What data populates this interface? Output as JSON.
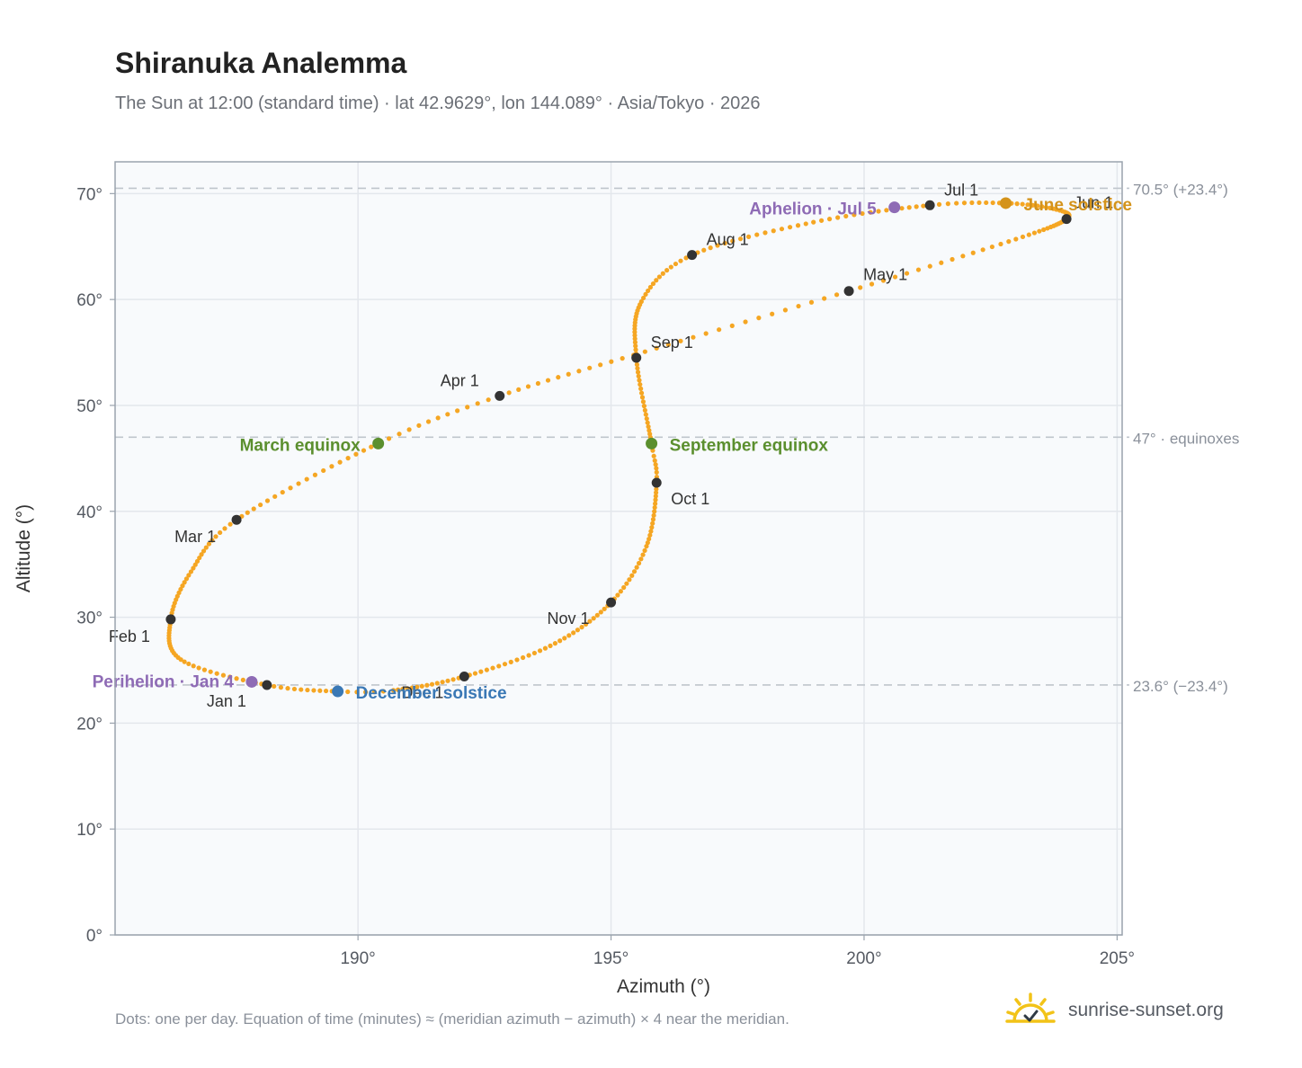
{
  "header": {
    "title": "Shiranuka Analemma",
    "subtitle": "The Sun at 12:00 (standard time) · lat 42.9629°, lon 144.089° · Asia/Tokyo · 2026"
  },
  "footer": {
    "note": "Dots: one per day. Equation of time (minutes) ≈ (meridian azimuth − azimuth) × 4 near the meridian.",
    "brand": "sunrise-sunset.org",
    "brand_icon": "sun-icon"
  },
  "chart_data": {
    "type": "scatter",
    "xlabel": "Azimuth (°)",
    "ylabel": "Altitude (°)",
    "xlim": [
      185.2,
      205.1
    ],
    "ylim": [
      0,
      73
    ],
    "xticks": [
      190,
      195,
      200,
      205
    ],
    "xtick_labels": [
      "190°",
      "195°",
      "200°",
      "205°"
    ],
    "yticks": [
      0,
      10,
      20,
      30,
      40,
      50,
      60,
      70
    ],
    "ytick_labels": [
      "0°",
      "10°",
      "20°",
      "30°",
      "40°",
      "50°",
      "60°",
      "70°"
    ],
    "grid": true,
    "colors": {
      "path": "#f5a623",
      "month": "#333333",
      "equinox": "#5b8f2e",
      "june": "#d4931a",
      "december": "#3a78b5",
      "apsis": "#8e6bb5",
      "refline": "#bfc5cc",
      "plot_bg": "#f8fafc",
      "border": "#9aa3ad"
    },
    "reference_lines": [
      {
        "y": 70.5,
        "label": "70.5° (+23.4°)"
      },
      {
        "y": 47,
        "label": "47° · equinoxes"
      },
      {
        "y": 23.6,
        "label": "23.6° (−23.4°)"
      }
    ],
    "month_markers": [
      {
        "label": "Jan 1",
        "az": 188.2,
        "alt": 23.6
      },
      {
        "label": "Feb 1",
        "az": 186.3,
        "alt": 29.8
      },
      {
        "label": "Mar 1",
        "az": 187.6,
        "alt": 39.2
      },
      {
        "label": "Apr 1",
        "az": 192.8,
        "alt": 50.9
      },
      {
        "label": "May 1",
        "az": 199.7,
        "alt": 60.8
      },
      {
        "label": "Jun 1",
        "az": 204.0,
        "alt": 67.6
      },
      {
        "label": "Jul 1",
        "az": 201.3,
        "alt": 68.9
      },
      {
        "label": "Aug 1",
        "az": 196.6,
        "alt": 64.2
      },
      {
        "label": "Sep 1",
        "az": 195.5,
        "alt": 54.5
      },
      {
        "label": "Oct 1",
        "az": 195.9,
        "alt": 42.7
      },
      {
        "label": "Nov 1",
        "az": 195.0,
        "alt": 31.4
      },
      {
        "label": "Dec 1",
        "az": 192.1,
        "alt": 24.4
      }
    ],
    "events": [
      {
        "label": "March equinox",
        "az": 190.4,
        "alt": 46.4,
        "kind": "equinox"
      },
      {
        "label": "September equinox",
        "az": 195.8,
        "alt": 46.4,
        "kind": "equinox"
      },
      {
        "label": "June solstice",
        "az": 202.8,
        "alt": 69.1,
        "kind": "june"
      },
      {
        "label": "December solstice",
        "az": 189.6,
        "alt": 23.0,
        "kind": "december"
      },
      {
        "label": "Perihelion · Jan 4",
        "az": 187.9,
        "alt": 23.9,
        "kind": "apsis"
      },
      {
        "label": "Aphelion · Jul 5",
        "az": 200.6,
        "alt": 68.7,
        "kind": "apsis"
      }
    ],
    "path_keypoints": [
      {
        "day": 0,
        "az": 188.2,
        "alt": 23.6
      },
      {
        "day": 15,
        "az": 186.5,
        "alt": 26.0
      },
      {
        "day": 31,
        "az": 186.3,
        "alt": 29.8
      },
      {
        "day": 45,
        "az": 186.7,
        "alt": 34.3
      },
      {
        "day": 59,
        "az": 187.6,
        "alt": 39.2
      },
      {
        "day": 78,
        "az": 190.4,
        "alt": 46.4
      },
      {
        "day": 90,
        "az": 192.8,
        "alt": 50.9
      },
      {
        "day": 105,
        "az": 195.9,
        "alt": 55.4
      },
      {
        "day": 120,
        "az": 199.7,
        "alt": 60.8
      },
      {
        "day": 136,
        "az": 203.0,
        "alt": 65.7
      },
      {
        "day": 151,
        "az": 204.0,
        "alt": 67.6
      },
      {
        "day": 160,
        "az": 203.8,
        "alt": 68.5
      },
      {
        "day": 171,
        "az": 202.8,
        "alt": 69.1
      },
      {
        "day": 181,
        "az": 201.3,
        "alt": 68.9
      },
      {
        "day": 196,
        "az": 199.0,
        "alt": 67.3
      },
      {
        "day": 212,
        "az": 196.6,
        "alt": 64.2
      },
      {
        "day": 226,
        "az": 195.6,
        "alt": 59.8
      },
      {
        "day": 243,
        "az": 195.5,
        "alt": 54.5
      },
      {
        "day": 265,
        "az": 195.8,
        "alt": 46.4
      },
      {
        "day": 273,
        "az": 195.9,
        "alt": 42.7
      },
      {
        "day": 290,
        "az": 195.7,
        "alt": 36.7
      },
      {
        "day": 304,
        "az": 195.0,
        "alt": 31.4
      },
      {
        "day": 319,
        "az": 193.8,
        "alt": 27.3
      },
      {
        "day": 334,
        "az": 192.1,
        "alt": 24.4
      },
      {
        "day": 348,
        "az": 190.7,
        "alt": 23.1
      },
      {
        "day": 354,
        "az": 189.6,
        "alt": 23.0
      },
      {
        "day": 365,
        "az": 188.2,
        "alt": 23.6
      }
    ]
  }
}
